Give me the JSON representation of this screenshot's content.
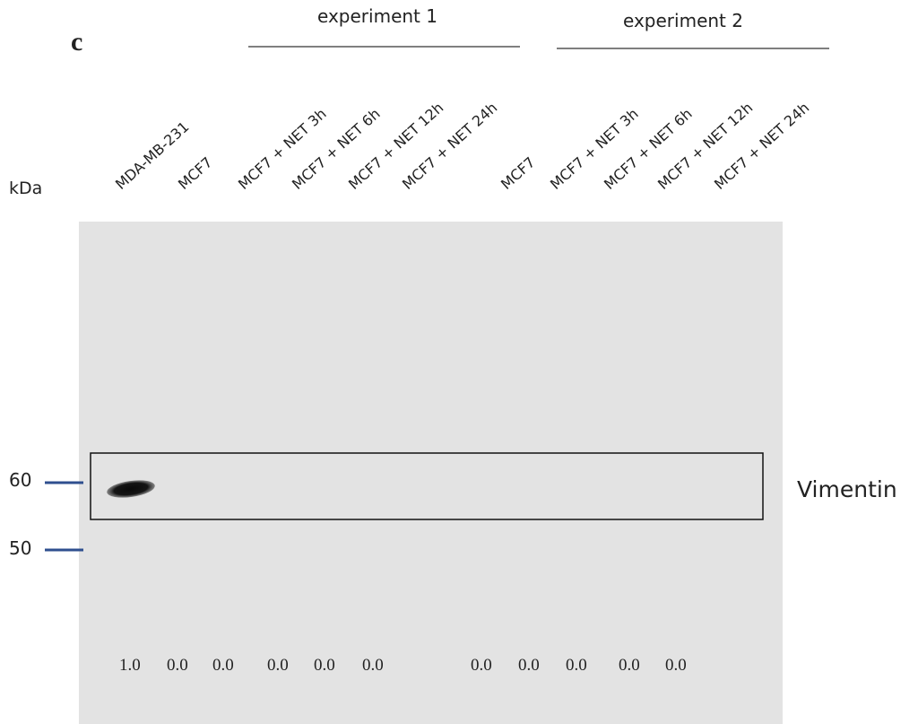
{
  "panel_label": "c",
  "groups": [
    {
      "label": "experiment 1"
    },
    {
      "label": "experiment 2"
    }
  ],
  "unit_label": "kDa",
  "lanes": [
    "MDA-MB-231",
    "MCF7",
    "MCF7 + NET 3h",
    "MCF7 + NET 6h",
    "MCF7 + NET 12h",
    "MCF7 + NET 24h",
    "MCF7",
    "MCF7 + NET 3h",
    "MCF7 + NET 6h",
    "MCF7 + NET 12h",
    "MCF7 + NET 24h"
  ],
  "markers": [
    "60",
    "50"
  ],
  "protein": "Vimentin",
  "quantification": [
    "1.0",
    "0.0",
    "0.0",
    "0.0",
    "0.0",
    "0.0",
    "0.0",
    "0.0",
    "0.0",
    "0.0",
    "0.0"
  ]
}
